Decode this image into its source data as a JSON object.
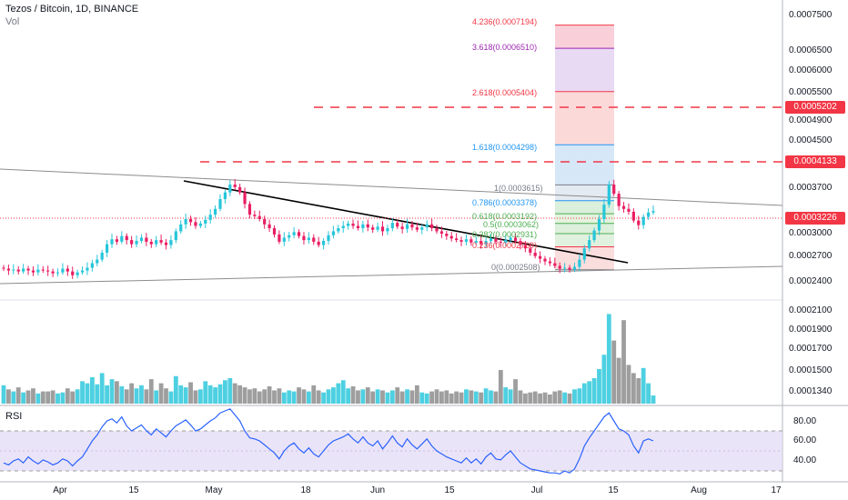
{
  "header": {
    "title": "Tezos / Bitcoin, 1D, BINANCE",
    "vol_label": "Vol",
    "rsi_label": "RSI"
  },
  "price_axis": [
    "0.0007500",
    "0.0006500",
    "0.0006000",
    "0.0005500",
    "0.0004900",
    "0.0004500",
    "0.0003700",
    "0.0003000",
    "0.0002700",
    "0.0002400"
  ],
  "price_badges": [
    {
      "value": "0.0005202",
      "color": "#f23645"
    },
    {
      "value": "0.0004133",
      "color": "#f23645"
    },
    {
      "value": "0.0003226",
      "color": "#f23645"
    }
  ],
  "volume_axis": [
    "0.0002100",
    "0.0001900",
    "0.0001700",
    "0.0001500",
    "0.0001340"
  ],
  "rsi_axis": [
    "80.00",
    "60.00",
    "40.00"
  ],
  "date_axis": [
    "Apr",
    "15",
    "May",
    "18",
    "Jun",
    "15",
    "Jul",
    "15",
    "Aug",
    "17"
  ],
  "fib_levels": [
    {
      "label": "4.236(0.0007194)",
      "color": "#f23645"
    },
    {
      "label": "3.618(0.0006510)",
      "color": "#9c27b0"
    },
    {
      "label": "2.618(0.0005404)",
      "color": "#f23645"
    },
    {
      "label": "1.618(0.0004298)",
      "color": "#2196f3"
    },
    {
      "label": "1(0.0003615)",
      "color": "#787b86"
    },
    {
      "label": "0.786(0.0003378)",
      "color": "#2196f3"
    },
    {
      "label": "0.618(0.0003192)",
      "color": "#4caf50"
    },
    {
      "label": "0.5(0.0003062)",
      "color": "#4caf50"
    },
    {
      "label": "0.382(0.0002931)",
      "color": "#4caf50"
    },
    {
      "label": "0.236(0.0002769)",
      "color": "#f23645"
    },
    {
      "label": "0(0.0002508)",
      "color": "#787b86"
    }
  ],
  "colors": {
    "up": "#26c6da",
    "down": "#e91e63",
    "rsi_line": "#2962ff",
    "rsi_band": "#e1d8f5",
    "vol_up": "#4dd0e1",
    "vol_down": "#9e9e9e"
  },
  "chart_data": [
    {
      "type": "candlestick",
      "title": "Tezos / Bitcoin, 1D, BINANCE",
      "x_ticks": [
        "Apr",
        "15",
        "May",
        "18",
        "Jun",
        "15",
        "Jul",
        "15",
        "Aug",
        "17"
      ],
      "y_scale": "log",
      "close_series": [
        0.000252,
        0.00025,
        0.000251,
        0.000249,
        0.000252,
        0.00025,
        0.000248,
        0.000251,
        0.00025,
        0.000249,
        0.000247,
        0.000248,
        0.000252,
        0.000249,
        0.000245,
        0.000248,
        0.00025,
        0.000253,
        0.000258,
        0.000262,
        0.00027,
        0.00028,
        0.000286,
        0.000283,
        0.00029,
        0.000285,
        0.00028,
        0.000284,
        0.000288,
        0.000283,
        0.00028,
        0.000285,
        0.000282,
        0.000279,
        0.000285,
        0.000296,
        0.000305,
        0.000312,
        0.000308,
        0.000303,
        0.000306,
        0.000311,
        0.000318,
        0.000326,
        0.00034,
        0.00035,
        0.000362,
        0.000358,
        0.00035,
        0.000333,
        0.000318,
        0.000316,
        0.000312,
        0.000305,
        0.0003,
        0.000292,
        0.000283,
        0.000288,
        0.000291,
        0.000295,
        0.00029,
        0.000285,
        0.000288,
        0.000283,
        0.000279,
        0.000284,
        0.000291,
        0.000296,
        0.0003,
        0.000303,
        0.000306,
        0.000303,
        0.0003,
        0.000305,
        0.000301,
        0.000298,
        0.000302,
        0.000296,
        0.0003,
        0.000307,
        0.000302,
        0.000299,
        0.000305,
        0.000301,
        0.000298,
        0.000301,
        0.000305,
        0.0003,
        0.000296,
        0.000293,
        0.00029,
        0.000287,
        0.000285,
        0.000283,
        0.000286,
        0.000282,
        0.000284,
        0.00028,
        0.000284,
        0.000287,
        0.000283,
        0.000282,
        0.000285,
        0.000288,
        0.000284,
        0.000279,
        0.000275,
        0.00027,
        0.000266,
        0.000263,
        0.00026,
        0.000258,
        0.000255,
        0.000252,
        0.000253,
        0.000251,
        0.000254,
        0.000262,
        0.000275,
        0.000285,
        0.000297,
        0.000312,
        0.000332,
        0.000362,
        0.000348,
        0.00033,
        0.000326,
        0.000322,
        0.00031,
        0.000304,
        0.000315,
        0.000321,
        0.000323
      ],
      "key_levels": [
        0.0005202,
        0.0004133,
        0.0003226
      ],
      "trendlines": "descending resistance from late April high to mid-July; converging triangle channel",
      "annotations": [
        "Fibonacci extension 0 to 4.236"
      ]
    },
    {
      "type": "bar",
      "series_label": "Vol",
      "y_ticks": [
        "0.0002100",
        "0.0001900",
        "0.0001700",
        "0.0001500",
        "0.0001340"
      ],
      "values_relative": [
        0.18,
        0.14,
        0.12,
        0.16,
        0.11,
        0.13,
        0.15,
        0.1,
        0.12,
        0.12,
        0.13,
        0.1,
        0.11,
        0.15,
        0.12,
        0.14,
        0.22,
        0.2,
        0.26,
        0.19,
        0.3,
        0.18,
        0.24,
        0.22,
        0.17,
        0.14,
        0.2,
        0.15,
        0.18,
        0.14,
        0.24,
        0.13,
        0.2,
        0.15,
        0.12,
        0.27,
        0.18,
        0.16,
        0.21,
        0.13,
        0.14,
        0.22,
        0.18,
        0.16,
        0.19,
        0.23,
        0.25,
        0.2,
        0.18,
        0.16,
        0.14,
        0.15,
        0.12,
        0.14,
        0.17,
        0.13,
        0.15,
        0.11,
        0.13,
        0.12,
        0.16,
        0.14,
        0.12,
        0.18,
        0.13,
        0.11,
        0.14,
        0.16,
        0.2,
        0.23,
        0.15,
        0.17,
        0.13,
        0.14,
        0.16,
        0.12,
        0.14,
        0.13,
        0.11,
        0.13,
        0.16,
        0.12,
        0.14,
        0.13,
        0.18,
        0.11,
        0.1,
        0.12,
        0.14,
        0.12,
        0.13,
        0.1,
        0.12,
        0.11,
        0.14,
        0.13,
        0.12,
        0.11,
        0.15,
        0.13,
        0.12,
        0.33,
        0.16,
        0.14,
        0.24,
        0.13,
        0.1,
        0.11,
        0.12,
        0.1,
        0.11,
        0.09,
        0.12,
        0.13,
        0.11,
        0.1,
        0.14,
        0.15,
        0.2,
        0.22,
        0.25,
        0.34,
        0.48,
        0.88,
        0.62,
        0.45,
        0.82,
        0.38,
        0.3,
        0.25,
        0.35,
        0.2,
        0.08
      ],
      "up_flags": [
        1,
        0,
        1,
        0,
        1,
        0,
        0,
        1,
        0,
        0,
        0,
        1,
        1,
        0,
        0,
        1,
        1,
        1,
        1,
        1,
        1,
        1,
        1,
        0,
        1,
        0,
        0,
        1,
        1,
        0,
        0,
        1,
        0,
        0,
        1,
        1,
        1,
        1,
        0,
        0,
        1,
        1,
        1,
        1,
        1,
        1,
        1,
        0,
        0,
        0,
        0,
        0,
        0,
        0,
        0,
        0,
        0,
        1,
        1,
        1,
        0,
        0,
        1,
        0,
        0,
        1,
        1,
        1,
        1,
        1,
        1,
        0,
        0,
        1,
        0,
        0,
        1,
        0,
        1,
        1,
        0,
        0,
        1,
        0,
        0,
        1,
        1,
        0,
        0,
        0,
        0,
        0,
        0,
        0,
        1,
        0,
        1,
        0,
        1,
        1,
        0,
        0,
        1,
        1,
        0,
        0,
        0,
        0,
        0,
        0,
        0,
        0,
        0,
        0,
        1,
        0,
        1,
        1,
        1,
        1,
        1,
        1,
        1,
        1,
        0,
        0,
        0,
        0,
        0,
        0,
        1,
        1,
        1
      ]
    },
    {
      "type": "line",
      "series_label": "RSI",
      "y_ticks": [
        "80.00",
        "60.00",
        "40.00"
      ],
      "band": [
        30,
        70
      ],
      "values": [
        38,
        36,
        40,
        42,
        38,
        44,
        40,
        37,
        41,
        39,
        36,
        38,
        42,
        40,
        35,
        40,
        44,
        52,
        60,
        66,
        74,
        80,
        82,
        78,
        84,
        75,
        70,
        73,
        76,
        70,
        66,
        72,
        68,
        64,
        70,
        75,
        78,
        81,
        76,
        70,
        72,
        76,
        80,
        83,
        88,
        90,
        92,
        86,
        80,
        70,
        63,
        62,
        60,
        56,
        52,
        48,
        42,
        50,
        55,
        58,
        52,
        48,
        53,
        47,
        44,
        50,
        56,
        60,
        62,
        64,
        67,
        62,
        58,
        64,
        58,
        55,
        60,
        52,
        58,
        65,
        58,
        54,
        62,
        56,
        52,
        57,
        62,
        55,
        50,
        47,
        44,
        42,
        40,
        38,
        43,
        38,
        42,
        37,
        44,
        48,
        42,
        41,
        46,
        50,
        44,
        38,
        35,
        32,
        31,
        30,
        29,
        28,
        28,
        27,
        30,
        28,
        32,
        42,
        55,
        63,
        70,
        77,
        84,
        88,
        80,
        72,
        70,
        66,
        55,
        48,
        60,
        62,
        60
      ]
    }
  ]
}
